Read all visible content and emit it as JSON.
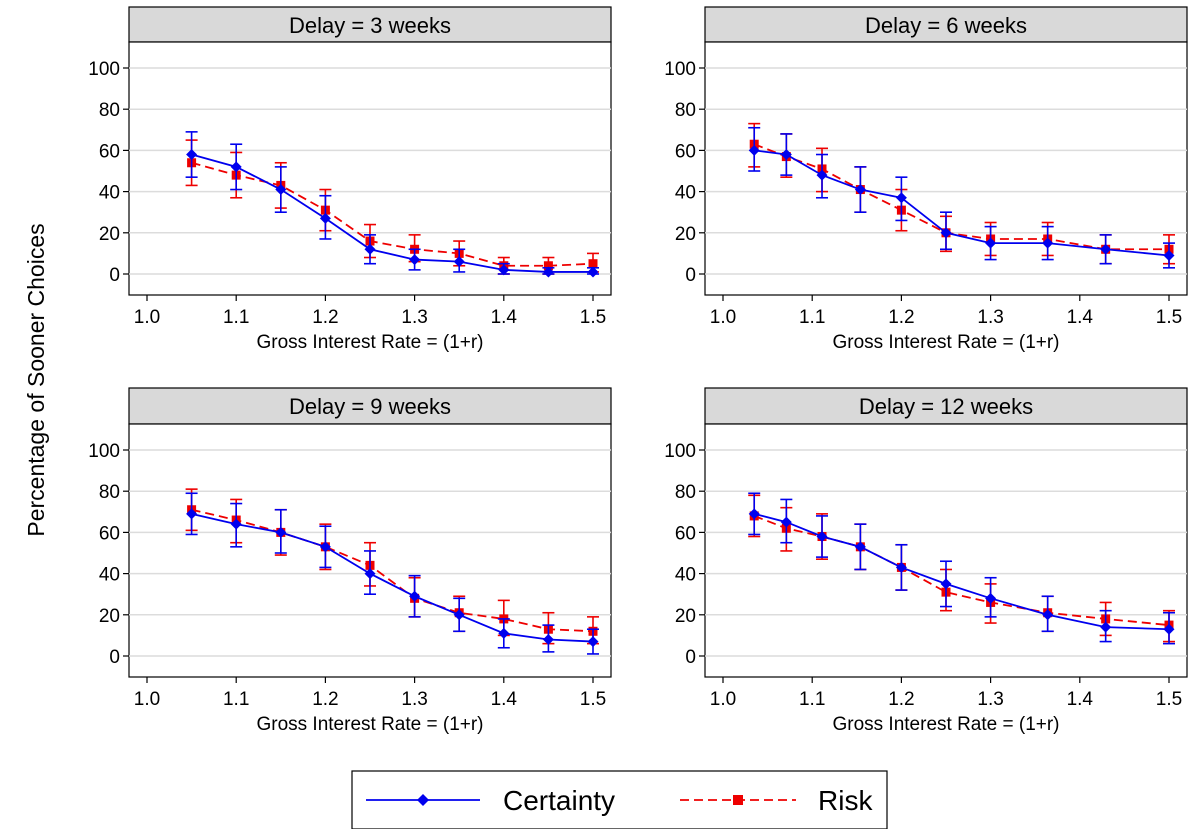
{
  "figure": {
    "ylabel": "Percentage of Sooner Choices",
    "legend": {
      "placement": "bottom-center",
      "items": [
        {
          "label": "Certainty",
          "color": "#0000ee",
          "marker": "diamond",
          "line": "solid"
        },
        {
          "label": "Risk",
          "color": "#ee0000",
          "marker": "square",
          "line": "dashed"
        }
      ]
    }
  },
  "chart_data": [
    {
      "type": "line",
      "title": "Delay = 3 weeks",
      "xlabel": "Gross Interest Rate = (1+r)",
      "ylabel": "Percentage of Sooner Choices",
      "xlim": [
        1.0,
        1.5
      ],
      "ylim": [
        0,
        100
      ],
      "xticks": [
        "1.0",
        "1.1",
        "1.2",
        "1.3",
        "1.4",
        "1.5"
      ],
      "yticks": [
        "0",
        "20",
        "40",
        "60",
        "80",
        "100"
      ],
      "grid": "horizontal",
      "series": [
        {
          "name": "Certainty",
          "color": "#0000ee",
          "x": [
            1.05,
            1.1,
            1.15,
            1.2,
            1.25,
            1.3,
            1.35,
            1.4,
            1.45,
            1.5
          ],
          "y": [
            58,
            52,
            41,
            27,
            12,
            7,
            6,
            2,
            1,
            1
          ],
          "err_low": [
            47,
            41,
            30,
            17,
            5,
            2,
            1,
            0,
            0,
            0
          ],
          "err_high": [
            69,
            63,
            52,
            38,
            19,
            12,
            12,
            5,
            3,
            3
          ]
        },
        {
          "name": "Risk",
          "color": "#ee0000",
          "x": [
            1.05,
            1.1,
            1.15,
            1.2,
            1.25,
            1.3,
            1.35,
            1.4,
            1.45,
            1.5
          ],
          "y": [
            54,
            48,
            43,
            31,
            16,
            12,
            10,
            4,
            4,
            5
          ],
          "err_low": [
            43,
            37,
            32,
            21,
            8,
            6,
            4,
            0,
            0,
            1
          ],
          "err_high": [
            65,
            59,
            54,
            41,
            24,
            19,
            16,
            8,
            8,
            10
          ]
        }
      ]
    },
    {
      "type": "line",
      "title": "Delay = 6 weeks",
      "xlabel": "Gross Interest Rate = (1+r)",
      "ylabel": "Percentage of Sooner Choices",
      "xlim": [
        1.0,
        1.5
      ],
      "ylim": [
        0,
        100
      ],
      "xticks": [
        "1.0",
        "1.1",
        "1.2",
        "1.3",
        "1.4",
        "1.5"
      ],
      "yticks": [
        "0",
        "20",
        "40",
        "60",
        "80",
        "100"
      ],
      "grid": "horizontal",
      "series": [
        {
          "name": "Certainty",
          "color": "#0000ee",
          "x": [
            1.035,
            1.071,
            1.111,
            1.154,
            1.2,
            1.25,
            1.3,
            1.364,
            1.429,
            1.5
          ],
          "y": [
            60,
            58,
            48,
            41,
            37,
            20,
            15,
            15,
            12,
            9
          ],
          "err_low": [
            50,
            48,
            37,
            30,
            26,
            12,
            7,
            7,
            5,
            3
          ],
          "err_high": [
            71,
            68,
            58,
            52,
            47,
            30,
            23,
            23,
            19,
            15
          ]
        },
        {
          "name": "Risk",
          "color": "#ee0000",
          "x": [
            1.035,
            1.071,
            1.111,
            1.154,
            1.2,
            1.25,
            1.3,
            1.364,
            1.429,
            1.5
          ],
          "y": [
            63,
            57,
            51,
            41,
            31,
            20,
            17,
            17,
            12,
            12
          ],
          "err_low": [
            52,
            47,
            40,
            30,
            21,
            11,
            9,
            9,
            5,
            5
          ],
          "err_high": [
            73,
            68,
            61,
            52,
            41,
            28,
            25,
            25,
            19,
            19
          ]
        }
      ]
    },
    {
      "type": "line",
      "title": "Delay = 9 weeks",
      "xlabel": "Gross Interest Rate = (1+r)",
      "ylabel": "Percentage of Sooner Choices",
      "xlim": [
        1.0,
        1.5
      ],
      "ylim": [
        0,
        100
      ],
      "xticks": [
        "1.0",
        "1.1",
        "1.2",
        "1.3",
        "1.4",
        "1.5"
      ],
      "yticks": [
        "0",
        "20",
        "40",
        "60",
        "80",
        "100"
      ],
      "grid": "horizontal",
      "series": [
        {
          "name": "Certainty",
          "color": "#0000ee",
          "x": [
            1.05,
            1.1,
            1.15,
            1.2,
            1.25,
            1.3,
            1.35,
            1.4,
            1.45,
            1.5
          ],
          "y": [
            69,
            64,
            60,
            53,
            40,
            29,
            20,
            11,
            8,
            7
          ],
          "err_low": [
            59,
            53,
            50,
            43,
            30,
            19,
            12,
            4,
            2,
            1
          ],
          "err_high": [
            79,
            74,
            71,
            63,
            51,
            39,
            28,
            18,
            15,
            13
          ]
        },
        {
          "name": "Risk",
          "color": "#ee0000",
          "x": [
            1.05,
            1.1,
            1.15,
            1.2,
            1.25,
            1.3,
            1.35,
            1.4,
            1.45,
            1.5
          ],
          "y": [
            71,
            66,
            60,
            53,
            44,
            28,
            21,
            18,
            13,
            12
          ],
          "err_low": [
            61,
            55,
            49,
            42,
            34,
            19,
            12,
            10,
            6,
            6
          ],
          "err_high": [
            81,
            76,
            71,
            64,
            55,
            38,
            29,
            27,
            21,
            19
          ]
        }
      ]
    },
    {
      "type": "line",
      "title": "Delay = 12 weeks",
      "xlabel": "Gross Interest Rate = (1+r)",
      "ylabel": "Percentage of Sooner Choices",
      "xlim": [
        1.0,
        1.5
      ],
      "ylim": [
        0,
        100
      ],
      "xticks": [
        "1.0",
        "1.1",
        "1.2",
        "1.3",
        "1.4",
        "1.5"
      ],
      "yticks": [
        "0",
        "20",
        "40",
        "60",
        "80",
        "100"
      ],
      "grid": "horizontal",
      "series": [
        {
          "name": "Certainty",
          "color": "#0000ee",
          "x": [
            1.035,
            1.071,
            1.111,
            1.154,
            1.2,
            1.25,
            1.3,
            1.364,
            1.429,
            1.5
          ],
          "y": [
            69,
            65,
            58,
            53,
            43,
            35,
            28,
            20,
            14,
            13
          ],
          "err_low": [
            59,
            55,
            48,
            42,
            32,
            24,
            19,
            12,
            7,
            6
          ],
          "err_high": [
            79,
            76,
            68,
            64,
            54,
            46,
            38,
            29,
            22,
            21
          ]
        },
        {
          "name": "Risk",
          "color": "#ee0000",
          "x": [
            1.035,
            1.071,
            1.111,
            1.154,
            1.2,
            1.25,
            1.3,
            1.364,
            1.429,
            1.5
          ],
          "y": [
            68,
            62,
            58,
            53,
            43,
            31,
            26,
            21,
            18,
            15
          ],
          "err_low": [
            58,
            51,
            47,
            42,
            32,
            22,
            16,
            12,
            10,
            7
          ],
          "err_high": [
            78,
            72,
            69,
            64,
            54,
            42,
            35,
            29,
            26,
            22
          ]
        }
      ]
    }
  ]
}
